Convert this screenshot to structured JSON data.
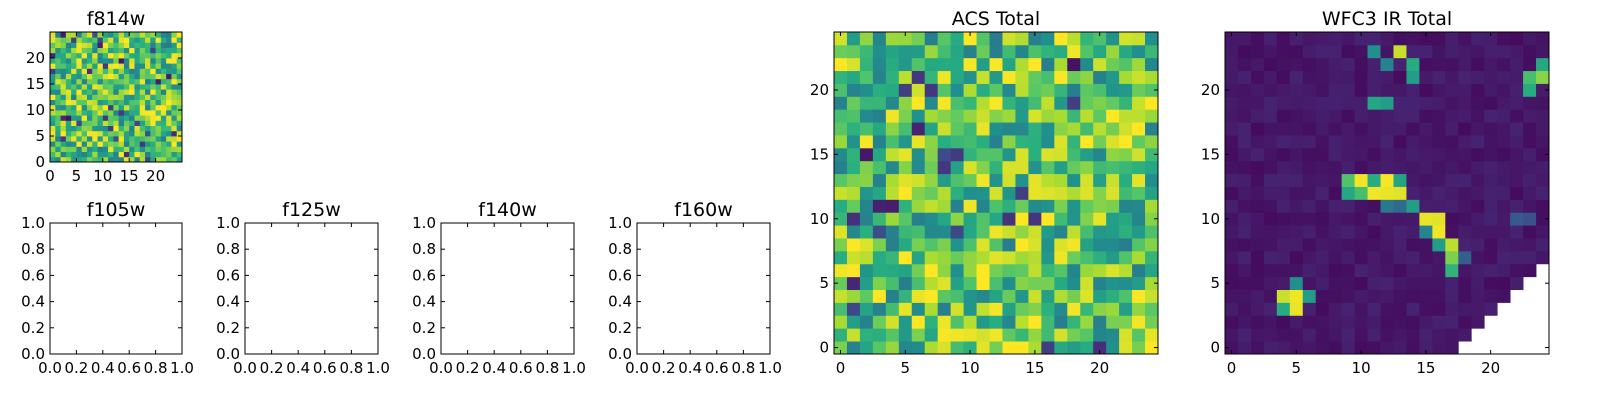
{
  "chart_data": [
    {
      "id": "f814w",
      "type": "heatmap",
      "title": "f814w",
      "grid_size": 25,
      "colormap": "viridis",
      "generator": {
        "style": "noise",
        "base": 0.72,
        "amp": 0.3,
        "seed": 11
      },
      "xticks": [
        "0",
        "5",
        "10",
        "15",
        "20"
      ],
      "yticks": [
        "0",
        "5",
        "10",
        "15",
        "20"
      ],
      "tick_values": [
        0,
        5,
        10,
        15,
        20
      ],
      "xlim": [
        0,
        25
      ],
      "ylim": [
        0,
        25
      ]
    },
    {
      "id": "f105w",
      "type": "empty",
      "title": "f105w",
      "xticks": [
        "0.0",
        "0.2",
        "0.4",
        "0.6",
        "0.8",
        "1.0"
      ],
      "yticks": [
        "0.0",
        "0.2",
        "0.4",
        "0.6",
        "0.8",
        "1.0"
      ],
      "tick_values": [
        0,
        0.2,
        0.4,
        0.6,
        0.8,
        1.0
      ],
      "xlim": [
        0,
        1
      ],
      "ylim": [
        0,
        1
      ]
    },
    {
      "id": "f125w",
      "type": "empty",
      "title": "f125w",
      "xticks": [
        "0.0",
        "0.2",
        "0.4",
        "0.6",
        "0.8",
        "1.0"
      ],
      "yticks": [
        "0.0",
        "0.2",
        "0.4",
        "0.6",
        "0.8",
        "1.0"
      ],
      "tick_values": [
        0,
        0.2,
        0.4,
        0.6,
        0.8,
        1.0
      ],
      "xlim": [
        0,
        1
      ],
      "ylim": [
        0,
        1
      ]
    },
    {
      "id": "f140w",
      "type": "empty",
      "title": "f140w",
      "xticks": [
        "0.0",
        "0.2",
        "0.4",
        "0.6",
        "0.8",
        "1.0"
      ],
      "yticks": [
        "0.0",
        "0.2",
        "0.4",
        "0.6",
        "0.8",
        "1.0"
      ],
      "tick_values": [
        0,
        0.2,
        0.4,
        0.6,
        0.8,
        1.0
      ],
      "xlim": [
        0,
        1
      ],
      "ylim": [
        0,
        1
      ]
    },
    {
      "id": "f160w",
      "type": "empty",
      "title": "f160w",
      "xticks": [
        "0.0",
        "0.2",
        "0.4",
        "0.6",
        "0.8",
        "1.0"
      ],
      "yticks": [
        "0.0",
        "0.2",
        "0.4",
        "0.6",
        "0.8",
        "1.0"
      ],
      "tick_values": [
        0,
        0.2,
        0.4,
        0.6,
        0.8,
        1.0
      ],
      "xlim": [
        0,
        1
      ],
      "ylim": [
        0,
        1
      ]
    },
    {
      "id": "acs-total",
      "type": "heatmap",
      "title": "ACS Total",
      "grid_size": 25,
      "colormap": "viridis",
      "generator": {
        "style": "noise",
        "base": 0.72,
        "amp": 0.3,
        "seed": 37
      },
      "xticks": [
        "0",
        "5",
        "10",
        "15",
        "20"
      ],
      "yticks": [
        "0",
        "5",
        "10",
        "15",
        "20"
      ],
      "tick_values": [
        0,
        5,
        10,
        15,
        20
      ],
      "xlim": [
        -0.5,
        24.5
      ],
      "ylim": [
        -0.5,
        24.5
      ]
    },
    {
      "id": "wfc3-ir-total",
      "type": "heatmap",
      "title": "WFC3 IR Total",
      "grid_size": 25,
      "colormap": "viridis",
      "generator": {
        "style": "background",
        "base": 0.03,
        "amp": 0.07,
        "seed": 5
      },
      "bright_cells": [
        [
          4,
          4,
          0.92
        ],
        [
          5,
          4,
          0.98
        ],
        [
          4,
          3,
          0.62
        ],
        [
          5,
          3,
          0.97
        ],
        [
          6,
          4,
          0.55
        ],
        [
          5,
          5,
          0.5
        ],
        [
          9,
          13,
          0.72
        ],
        [
          10,
          13,
          0.98
        ],
        [
          11,
          13,
          0.62
        ],
        [
          12,
          13,
          0.99
        ],
        [
          13,
          13,
          0.58
        ],
        [
          9,
          12,
          0.6
        ],
        [
          10,
          12,
          0.7
        ],
        [
          11,
          12,
          0.98
        ],
        [
          12,
          12,
          0.97
        ],
        [
          13,
          12,
          0.96
        ],
        [
          12,
          11,
          0.4
        ],
        [
          13,
          11,
          0.35
        ],
        [
          14,
          11,
          0.55
        ],
        [
          15,
          10,
          0.97
        ],
        [
          16,
          10,
          0.96
        ],
        [
          16,
          9,
          0.98
        ],
        [
          15,
          9,
          0.45
        ],
        [
          16,
          8,
          0.55
        ],
        [
          17,
          8,
          0.9
        ],
        [
          17,
          7,
          0.8
        ],
        [
          17,
          6,
          0.65
        ],
        [
          18,
          7,
          0.3
        ],
        [
          11,
          23,
          0.5
        ],
        [
          12,
          22,
          0.45
        ],
        [
          13,
          23,
          0.92
        ],
        [
          14,
          22,
          0.62
        ],
        [
          14,
          21,
          0.55
        ],
        [
          11,
          19,
          0.6
        ],
        [
          12,
          19,
          0.55
        ],
        [
          23,
          20,
          0.62
        ],
        [
          23,
          21,
          0.7
        ],
        [
          24,
          21,
          0.82
        ],
        [
          24,
          22,
          0.6
        ],
        [
          22,
          10,
          0.28
        ],
        [
          23,
          10,
          0.25
        ]
      ],
      "missing_triangle": {
        "corner": "bottom-right"
      },
      "xticks": [
        "0",
        "5",
        "10",
        "15",
        "20"
      ],
      "yticks": [
        "0",
        "5",
        "10",
        "15",
        "20"
      ],
      "tick_values": [
        0,
        5,
        10,
        15,
        20
      ],
      "xlim": [
        -0.5,
        24.5
      ],
      "ylim": [
        -0.5,
        24.5
      ]
    }
  ]
}
